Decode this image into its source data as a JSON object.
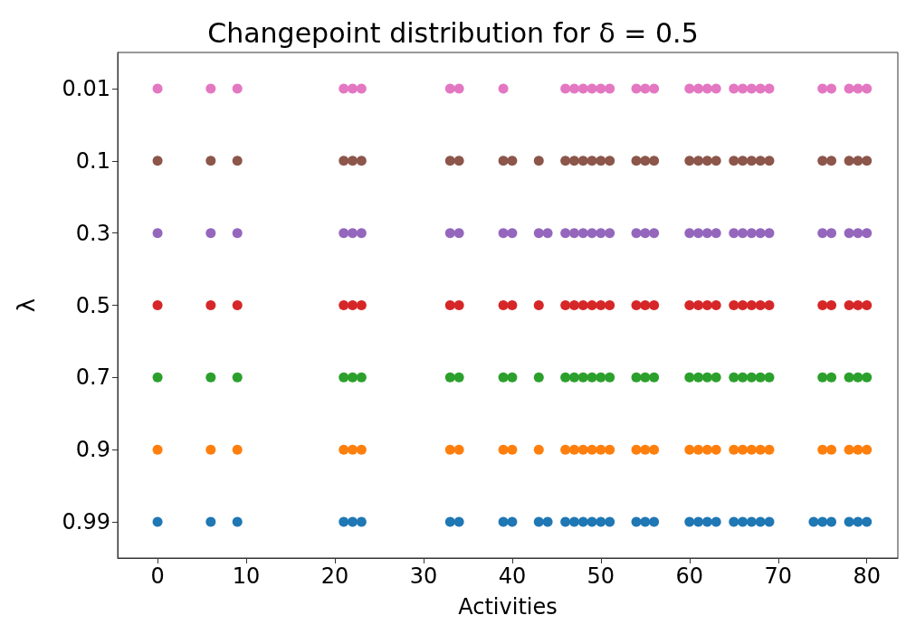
{
  "chart_data": {
    "type": "scatter",
    "orientation": "horizontal",
    "title": "Changepoint distribution for δ = 0.5",
    "xlabel": "Activities",
    "ylabel": "λ",
    "categories": [
      "0.01",
      "0.1",
      "0.3",
      "0.5",
      "0.7",
      "0.9",
      "0.99"
    ],
    "xlim": [
      -4.5,
      83.5
    ],
    "xticks": [
      0,
      10,
      20,
      30,
      40,
      50,
      60,
      70,
      80
    ],
    "grid": false,
    "marker": "circle",
    "series": [
      {
        "color": "#1f77b4",
        "x": [
          "0.99",
          "0.99",
          "0.99",
          "0.99",
          "0.99",
          "0.99",
          "0.99",
          "0.99",
          "0.99",
          "0.99",
          "0.99",
          "0.99",
          "0.99",
          "0.99",
          "0.99",
          "0.99",
          "0.99",
          "0.99",
          "0.99",
          "0.99",
          "0.99",
          "0.99",
          "0.99",
          "0.99",
          "0.99",
          "0.99",
          "0.99",
          "0.99",
          "0.99",
          "0.99",
          "0.99",
          "0.99",
          "0.99",
          "0.99",
          "0.99",
          "0.99"
        ],
        "values": [
          0,
          6,
          9,
          21,
          22,
          23,
          33,
          34,
          39,
          40,
          43,
          44,
          46,
          47,
          48,
          49,
          50,
          51,
          54,
          55,
          56,
          60,
          61,
          62,
          63,
          65,
          66,
          67,
          68,
          69,
          74,
          75,
          76,
          78,
          79,
          80
        ]
      },
      {
        "color": "#ff7f0e",
        "x": [
          "0.9",
          "0.9",
          "0.9",
          "0.9",
          "0.9",
          "0.9",
          "0.9",
          "0.9",
          "0.9",
          "0.9",
          "0.9",
          "0.9",
          "0.9",
          "0.9",
          "0.9",
          "0.9",
          "0.9",
          "0.9",
          "0.9",
          "0.9",
          "0.9",
          "0.9",
          "0.9",
          "0.9",
          "0.9",
          "0.9",
          "0.9",
          "0.9",
          "0.9",
          "0.9",
          "0.9",
          "0.9",
          "0.9",
          "0.9"
        ],
        "values": [
          0,
          6,
          9,
          21,
          22,
          23,
          33,
          34,
          39,
          40,
          43,
          46,
          47,
          48,
          49,
          50,
          51,
          54,
          55,
          56,
          60,
          61,
          62,
          63,
          65,
          66,
          67,
          68,
          69,
          75,
          76,
          78,
          79,
          80
        ]
      },
      {
        "color": "#2ca02c",
        "x": [
          "0.7",
          "0.7",
          "0.7",
          "0.7",
          "0.7",
          "0.7",
          "0.7",
          "0.7",
          "0.7",
          "0.7",
          "0.7",
          "0.7",
          "0.7",
          "0.7",
          "0.7",
          "0.7",
          "0.7",
          "0.7",
          "0.7",
          "0.7",
          "0.7",
          "0.7",
          "0.7",
          "0.7",
          "0.7",
          "0.7",
          "0.7",
          "0.7",
          "0.7",
          "0.7",
          "0.7",
          "0.7",
          "0.7",
          "0.7"
        ],
        "values": [
          0,
          6,
          9,
          21,
          22,
          23,
          33,
          34,
          39,
          40,
          43,
          46,
          47,
          48,
          49,
          50,
          51,
          54,
          55,
          56,
          60,
          61,
          62,
          63,
          65,
          66,
          67,
          68,
          69,
          75,
          76,
          78,
          79,
          80
        ]
      },
      {
        "color": "#d62728",
        "x": [
          "0.5",
          "0.5",
          "0.5",
          "0.5",
          "0.5",
          "0.5",
          "0.5",
          "0.5",
          "0.5",
          "0.5",
          "0.5",
          "0.5",
          "0.5",
          "0.5",
          "0.5",
          "0.5",
          "0.5",
          "0.5",
          "0.5",
          "0.5",
          "0.5",
          "0.5",
          "0.5",
          "0.5",
          "0.5",
          "0.5",
          "0.5",
          "0.5",
          "0.5",
          "0.5",
          "0.5",
          "0.5",
          "0.5",
          "0.5"
        ],
        "values": [
          0,
          6,
          9,
          21,
          22,
          23,
          33,
          34,
          39,
          40,
          43,
          46,
          47,
          48,
          49,
          50,
          51,
          54,
          55,
          56,
          60,
          61,
          62,
          63,
          65,
          66,
          67,
          68,
          69,
          75,
          76,
          78,
          79,
          80
        ]
      },
      {
        "color": "#9467bd",
        "x": [
          "0.3",
          "0.3",
          "0.3",
          "0.3",
          "0.3",
          "0.3",
          "0.3",
          "0.3",
          "0.3",
          "0.3",
          "0.3",
          "0.3",
          "0.3",
          "0.3",
          "0.3",
          "0.3",
          "0.3",
          "0.3",
          "0.3",
          "0.3",
          "0.3",
          "0.3",
          "0.3",
          "0.3",
          "0.3",
          "0.3",
          "0.3",
          "0.3",
          "0.3",
          "0.3",
          "0.3",
          "0.3",
          "0.3",
          "0.3",
          "0.3"
        ],
        "values": [
          0,
          6,
          9,
          21,
          22,
          23,
          33,
          34,
          39,
          40,
          43,
          44,
          46,
          47,
          48,
          49,
          50,
          51,
          54,
          55,
          56,
          60,
          61,
          62,
          63,
          65,
          66,
          67,
          68,
          69,
          75,
          76,
          78,
          79,
          80
        ]
      },
      {
        "color": "#8c564b",
        "x": [
          "0.1",
          "0.1",
          "0.1",
          "0.1",
          "0.1",
          "0.1",
          "0.1",
          "0.1",
          "0.1",
          "0.1",
          "0.1",
          "0.1",
          "0.1",
          "0.1",
          "0.1",
          "0.1",
          "0.1",
          "0.1",
          "0.1",
          "0.1",
          "0.1",
          "0.1",
          "0.1",
          "0.1",
          "0.1",
          "0.1",
          "0.1",
          "0.1",
          "0.1",
          "0.1",
          "0.1",
          "0.1",
          "0.1",
          "0.1"
        ],
        "values": [
          0,
          6,
          9,
          21,
          22,
          23,
          33,
          34,
          39,
          40,
          43,
          46,
          47,
          48,
          49,
          50,
          51,
          54,
          55,
          56,
          60,
          61,
          62,
          63,
          65,
          66,
          67,
          68,
          69,
          75,
          76,
          78,
          79,
          80
        ]
      },
      {
        "color": "#e377c2",
        "x": [
          "0.01",
          "0.01",
          "0.01",
          "0.01",
          "0.01",
          "0.01",
          "0.01",
          "0.01",
          "0.01",
          "0.01",
          "0.01",
          "0.01",
          "0.01",
          "0.01",
          "0.01",
          "0.01",
          "0.01",
          "0.01",
          "0.01",
          "0.01",
          "0.01",
          "0.01",
          "0.01",
          "0.01",
          "0.01",
          "0.01",
          "0.01",
          "0.01",
          "0.01",
          "0.01",
          "0.01",
          "0.01"
        ],
        "values": [
          0,
          6,
          9,
          21,
          22,
          23,
          33,
          34,
          39,
          46,
          47,
          48,
          49,
          50,
          51,
          54,
          55,
          56,
          60,
          61,
          62,
          63,
          65,
          66,
          67,
          68,
          69,
          75,
          76,
          78,
          79,
          80
        ]
      }
    ]
  }
}
